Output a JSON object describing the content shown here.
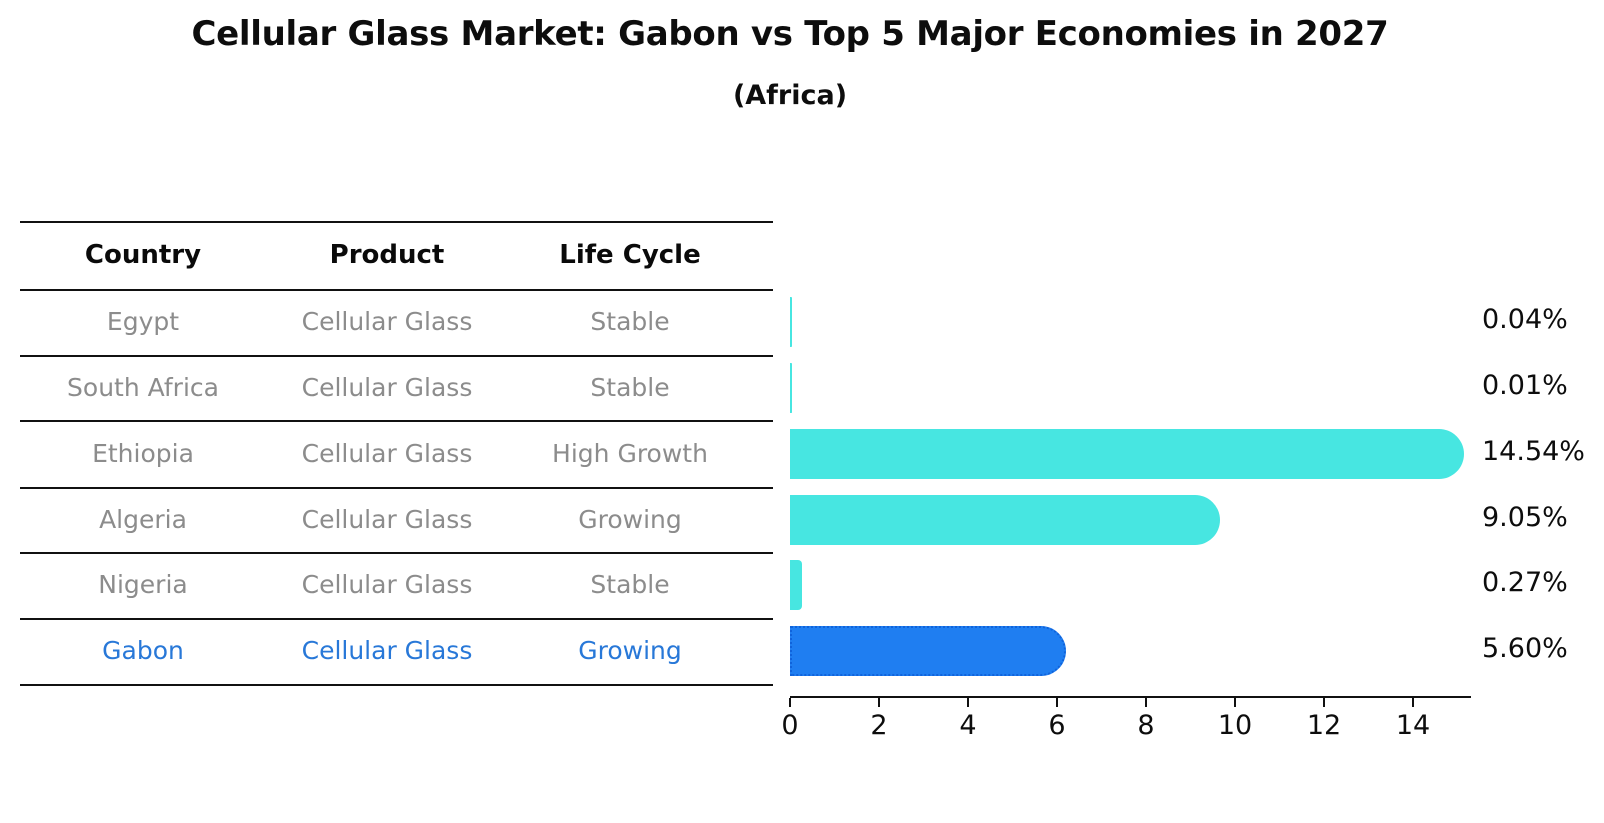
{
  "title": "Cellular Glass Market: Gabon vs Top 5 Major Economies in 2027",
  "subtitle": "(Africa)",
  "table": {
    "headers": [
      "Country",
      "Product",
      "Life Cycle"
    ],
    "rows": [
      {
        "country": "Egypt",
        "product": "Cellular Glass",
        "life_cycle": "Stable",
        "highlight": false
      },
      {
        "country": "South Africa",
        "product": "Cellular Glass",
        "life_cycle": "Stable",
        "highlight": false
      },
      {
        "country": "Ethiopia",
        "product": "Cellular Glass",
        "life_cycle": "High Growth",
        "highlight": false
      },
      {
        "country": "Algeria",
        "product": "Cellular Glass",
        "life_cycle": "Growing",
        "highlight": false
      },
      {
        "country": "Nigeria",
        "product": "Cellular Glass",
        "life_cycle": "Stable",
        "highlight": false
      },
      {
        "country": "Gabon",
        "product": "Cellular Glass",
        "life_cycle": "Growing",
        "highlight": true
      }
    ]
  },
  "chart_data": {
    "type": "bar",
    "orientation": "horizontal",
    "title": "Cellular Glass Market: Gabon vs Top 5 Major Economies in 2027 (Africa)",
    "categories": [
      "Egypt",
      "South Africa",
      "Ethiopia",
      "Algeria",
      "Nigeria",
      "Gabon"
    ],
    "values": [
      0.04,
      0.01,
      14.54,
      9.05,
      0.27,
      5.6
    ],
    "value_labels": [
      "0.04%",
      "0.01%",
      "14.54%",
      "9.05%",
      "0.27%",
      "5.60%"
    ],
    "highlighted_category": "Gabon",
    "xlabel": "",
    "ylabel": "",
    "xlim": [
      0,
      15.3
    ],
    "x_ticks": [
      0,
      2,
      4,
      6,
      8,
      10,
      12,
      14
    ],
    "grid": false,
    "legend": "none"
  },
  "colors": {
    "bar_default": "#47E6E1",
    "bar_highlight": "#1F7EF1",
    "bar_highlight_border": "#1063DB",
    "highlight_text": "#2878D8",
    "table_text": "#8C8C8C",
    "header_text": "#0A0A0A",
    "axis_text": "#0D0D0D",
    "line": "#111111",
    "background": "#FFFFFF"
  }
}
